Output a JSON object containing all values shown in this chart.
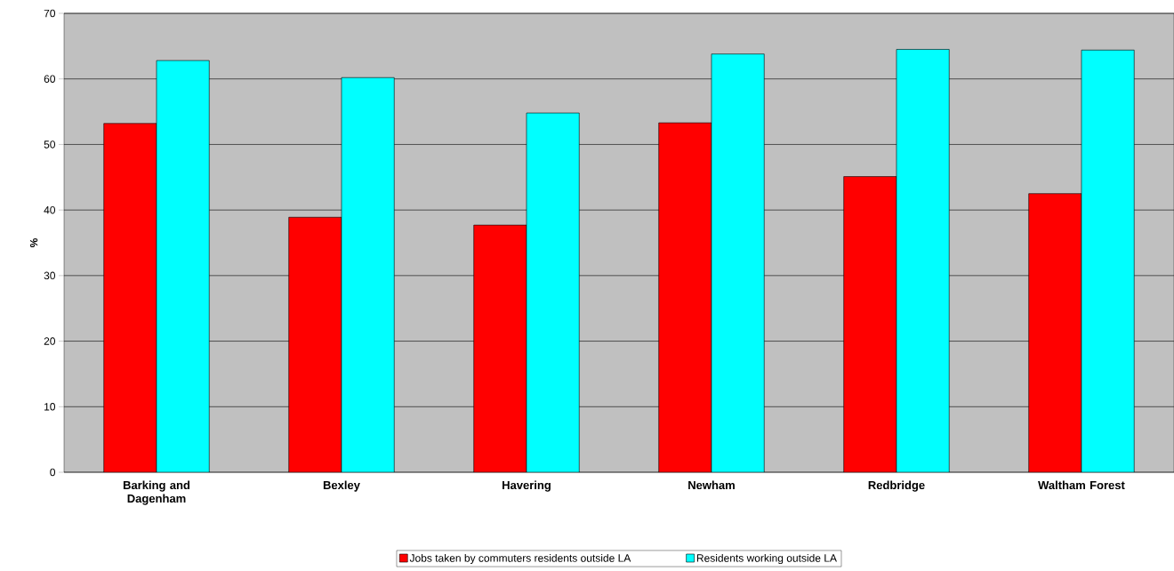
{
  "chart_data": {
    "type": "bar",
    "ylabel": "%",
    "categories": [
      "Barking and Dagenham",
      "Bexley",
      "Havering",
      "Newham",
      "Redbridge",
      "Waltham Forest"
    ],
    "series": [
      {
        "name": "Jobs taken by commuters residents outside LA",
        "color": "#ff0000",
        "values": [
          53.2,
          38.9,
          37.7,
          53.3,
          45.1,
          42.5
        ]
      },
      {
        "name": "Residents working outside LA",
        "color": "#00ffff",
        "values": [
          62.8,
          60.2,
          54.8,
          63.8,
          64.5,
          64.4
        ]
      }
    ],
    "ylim": [
      0,
      70
    ],
    "yticks": [
      0,
      10,
      20,
      30,
      40,
      50,
      60,
      70
    ],
    "grid": "y",
    "legend": "bottom"
  }
}
